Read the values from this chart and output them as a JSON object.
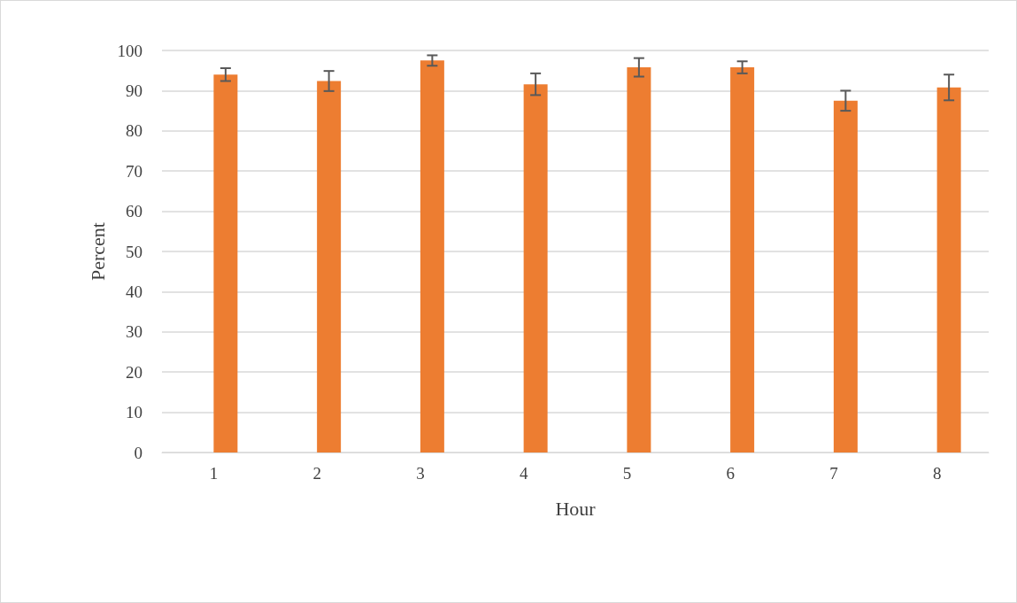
{
  "chart_data": {
    "type": "bar",
    "xlabel": "Hour",
    "ylabel": "Percent",
    "categories": [
      "1",
      "2",
      "3",
      "4",
      "5",
      "6",
      "7",
      "8"
    ],
    "series": [
      {
        "color": "#5b9bd5",
        "values": [
          0,
          0,
          0,
          0,
          0,
          0,
          0,
          0
        ]
      },
      {
        "color": "#ed7d31",
        "values": [
          94.0,
          92.4,
          97.5,
          91.6,
          95.8,
          95.8,
          87.5,
          90.8
        ],
        "errors": [
          1.6,
          2.5,
          1.3,
          2.7,
          2.3,
          1.5,
          2.5,
          3.2
        ]
      }
    ],
    "ylim": [
      0,
      100
    ],
    "yticks": [
      0,
      10,
      20,
      30,
      40,
      50,
      60,
      70,
      80,
      90,
      100
    ],
    "grid": "y"
  }
}
